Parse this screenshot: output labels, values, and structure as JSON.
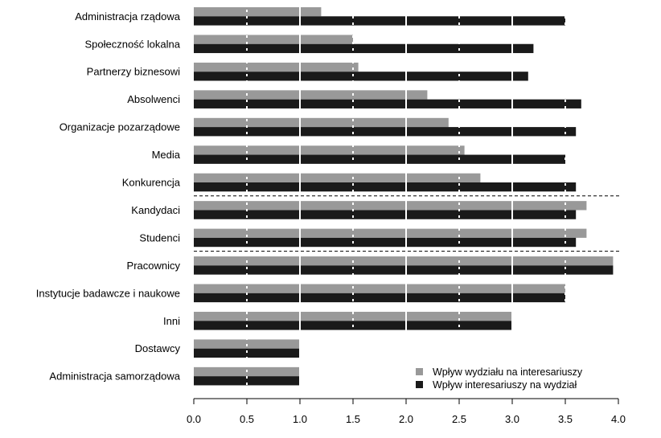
{
  "chart_data": {
    "type": "bar",
    "orientation": "horizontal",
    "title": "",
    "xlabel": "",
    "ylabel": "",
    "xlim": [
      0,
      4
    ],
    "xticks": [
      "0.0",
      "0.5",
      "1.0",
      "1.5",
      "2.0",
      "2.5",
      "3.0",
      "3.5",
      "4.0"
    ],
    "categories": [
      "Administracja rządowa",
      "Społeczność lokalna",
      "Partnerzy biznesowi",
      "Absolwenci",
      "Organizacje pozarządowe",
      "Media",
      "Konkurencja",
      "Kandydaci",
      "Studenci",
      "Pracownicy",
      "Instytucje badawcze i naukowe",
      "Inni",
      "Dostawcy",
      "Administracja samorządowa"
    ],
    "series": [
      {
        "name": "Wpływ wydziału na interesariuszy",
        "color": "#999999",
        "values": [
          1.2,
          1.5,
          1.55,
          2.2,
          2.4,
          2.55,
          2.7,
          3.7,
          3.7,
          3.95,
          3.5,
          3.0,
          1.0,
          1.0
        ]
      },
      {
        "name": "Wpływ interesariuszy na wydział",
        "color": "#1a1a1a",
        "values": [
          3.5,
          3.2,
          3.15,
          3.65,
          3.6,
          3.5,
          3.6,
          3.6,
          3.6,
          3.95,
          3.5,
          3.0,
          1.0,
          1.0
        ]
      }
    ],
    "separators_after": [
      "Konkurencja",
      "Studenci"
    ],
    "gridlines": {
      "solid": [
        1.0,
        2.0,
        3.0
      ],
      "dotted": [
        0.5,
        1.5,
        2.5,
        3.5
      ]
    },
    "legend": {
      "position": "bottom-right",
      "entries": [
        "Wpływ wydziału na interesariuszy",
        "Wpływ interesariuszy na wydział"
      ]
    }
  }
}
